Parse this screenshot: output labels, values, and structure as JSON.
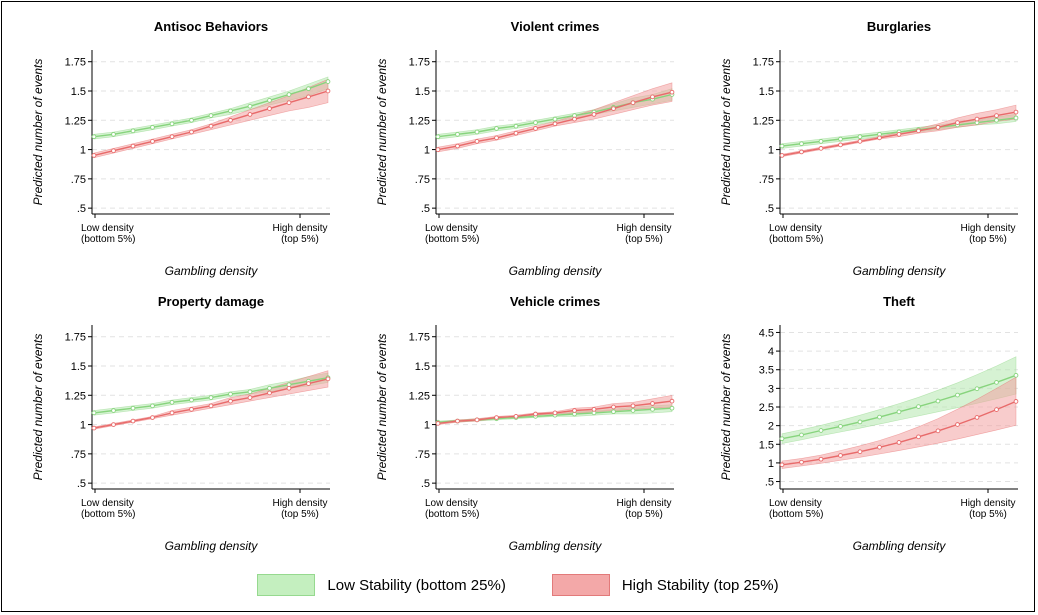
{
  "chart_data": [
    {
      "type": "line",
      "title": "Antisoc Behaviors",
      "xlabel": "Gambling density",
      "ylabel": "Predicted number of events",
      "x_tick_labels": [
        [
          "Low density",
          "(bottom 5%)"
        ],
        [
          "High density",
          "(top 5%)"
        ]
      ],
      "y_ticks": [
        ".5",
        ".75",
        "1",
        "1.25",
        "1.5",
        "1.75"
      ],
      "y_tick_values": [
        0.5,
        0.75,
        1,
        1.25,
        1.5,
        1.75
      ],
      "ylim": [
        0.45,
        1.85
      ],
      "grid": true,
      "series": [
        {
          "name": "Low Stability (bottom 25%)",
          "values": [
            1.11,
            1.13,
            1.16,
            1.19,
            1.22,
            1.25,
            1.29,
            1.33,
            1.37,
            1.42,
            1.47,
            1.52,
            1.58
          ],
          "lower": [
            1.09,
            1.11,
            1.14,
            1.17,
            1.2,
            1.23,
            1.27,
            1.3,
            1.34,
            1.38,
            1.42,
            1.46,
            1.52
          ],
          "upper": [
            1.13,
            1.15,
            1.18,
            1.21,
            1.24,
            1.27,
            1.31,
            1.35,
            1.4,
            1.45,
            1.5,
            1.56,
            1.62
          ]
        },
        {
          "name": "High Stability (top 25%)",
          "values": [
            0.95,
            0.99,
            1.03,
            1.07,
            1.11,
            1.15,
            1.2,
            1.25,
            1.3,
            1.35,
            1.4,
            1.45,
            1.5
          ],
          "lower": [
            0.93,
            0.97,
            1.01,
            1.05,
            1.09,
            1.13,
            1.17,
            1.21,
            1.25,
            1.29,
            1.33,
            1.36,
            1.4
          ],
          "upper": [
            0.97,
            1.01,
            1.05,
            1.09,
            1.13,
            1.17,
            1.22,
            1.28,
            1.34,
            1.4,
            1.46,
            1.53,
            1.6
          ]
        }
      ]
    },
    {
      "type": "line",
      "title": "Violent crimes",
      "xlabel": "Gambling density",
      "ylabel": "Predicted number of events",
      "x_tick_labels": [
        [
          "Low density",
          "(bottom 5%)"
        ],
        [
          "High density",
          "(top 5%)"
        ]
      ],
      "y_ticks": [
        ".5",
        ".75",
        "1",
        "1.25",
        "1.5",
        "1.75"
      ],
      "y_tick_values": [
        0.5,
        0.75,
        1,
        1.25,
        1.5,
        1.75
      ],
      "ylim": [
        0.45,
        1.85
      ],
      "grid": true,
      "series": [
        {
          "name": "Low Stability (bottom 25%)",
          "values": [
            1.11,
            1.13,
            1.15,
            1.18,
            1.2,
            1.23,
            1.26,
            1.29,
            1.32,
            1.36,
            1.4,
            1.43,
            1.47
          ],
          "lower": [
            1.09,
            1.11,
            1.13,
            1.16,
            1.18,
            1.21,
            1.24,
            1.27,
            1.3,
            1.33,
            1.36,
            1.39,
            1.42
          ],
          "upper": [
            1.13,
            1.15,
            1.17,
            1.2,
            1.22,
            1.25,
            1.28,
            1.31,
            1.34,
            1.39,
            1.44,
            1.47,
            1.52
          ]
        },
        {
          "name": "High Stability (top 25%)",
          "values": [
            1,
            1.03,
            1.07,
            1.1,
            1.14,
            1.18,
            1.22,
            1.26,
            1.3,
            1.35,
            1.4,
            1.45,
            1.49
          ],
          "lower": [
            0.98,
            1.01,
            1.05,
            1.08,
            1.12,
            1.16,
            1.2,
            1.23,
            1.26,
            1.3,
            1.34,
            1.38,
            1.41
          ],
          "upper": [
            1.02,
            1.05,
            1.09,
            1.12,
            1.16,
            1.2,
            1.24,
            1.29,
            1.34,
            1.4,
            1.46,
            1.52,
            1.57
          ]
        }
      ]
    },
    {
      "type": "line",
      "title": "Burglaries",
      "xlabel": "Gambling density",
      "ylabel": "Predicted number of events",
      "x_tick_labels": [
        [
          "Low density",
          "(bottom 5%)"
        ],
        [
          "High density",
          "(top 5%)"
        ]
      ],
      "y_ticks": [
        ".5",
        ".75",
        "1",
        "1.25",
        "1.5",
        "1.75"
      ],
      "y_tick_values": [
        0.5,
        0.75,
        1,
        1.25,
        1.5,
        1.75
      ],
      "ylim": [
        0.45,
        1.85
      ],
      "grid": true,
      "series": [
        {
          "name": "Low Stability (bottom 25%)",
          "values": [
            1.03,
            1.05,
            1.07,
            1.09,
            1.11,
            1.13,
            1.15,
            1.17,
            1.19,
            1.21,
            1.23,
            1.25,
            1.27
          ],
          "lower": [
            1.01,
            1.03,
            1.05,
            1.07,
            1.09,
            1.11,
            1.13,
            1.15,
            1.17,
            1.19,
            1.21,
            1.22,
            1.24
          ],
          "upper": [
            1.05,
            1.07,
            1.09,
            1.11,
            1.13,
            1.15,
            1.17,
            1.19,
            1.21,
            1.23,
            1.25,
            1.28,
            1.3
          ]
        },
        {
          "name": "High Stability (top 25%)",
          "values": [
            0.95,
            0.98,
            1.01,
            1.04,
            1.07,
            1.1,
            1.13,
            1.16,
            1.19,
            1.23,
            1.26,
            1.29,
            1.32
          ],
          "lower": [
            0.94,
            0.97,
            1,
            1.03,
            1.06,
            1.09,
            1.11,
            1.14,
            1.16,
            1.19,
            1.21,
            1.24,
            1.26
          ],
          "upper": [
            0.96,
            0.99,
            1.02,
            1.05,
            1.08,
            1.11,
            1.15,
            1.18,
            1.22,
            1.27,
            1.31,
            1.34,
            1.38
          ]
        }
      ]
    },
    {
      "type": "line",
      "title": "Property damage",
      "xlabel": "Gambling density",
      "ylabel": "Predicted number of events",
      "x_tick_labels": [
        [
          "Low density",
          "(bottom 5%)"
        ],
        [
          "High density",
          "(top 5%)"
        ]
      ],
      "y_ticks": [
        ".5",
        ".75",
        "1",
        "1.25",
        "1.5",
        "1.75"
      ],
      "y_tick_values": [
        0.5,
        0.75,
        1,
        1.25,
        1.5,
        1.75
      ],
      "ylim": [
        0.45,
        1.85
      ],
      "grid": true,
      "series": [
        {
          "name": "Low Stability (bottom 25%)",
          "values": [
            1.1,
            1.12,
            1.14,
            1.16,
            1.19,
            1.21,
            1.23,
            1.26,
            1.28,
            1.31,
            1.34,
            1.37,
            1.4
          ],
          "lower": [
            1.08,
            1.1,
            1.12,
            1.14,
            1.17,
            1.19,
            1.21,
            1.24,
            1.26,
            1.28,
            1.31,
            1.33,
            1.36
          ],
          "upper": [
            1.12,
            1.14,
            1.16,
            1.18,
            1.21,
            1.23,
            1.25,
            1.28,
            1.3,
            1.34,
            1.37,
            1.41,
            1.44
          ]
        },
        {
          "name": "High Stability (top 25%)",
          "values": [
            0.97,
            1,
            1.03,
            1.06,
            1.1,
            1.13,
            1.16,
            1.2,
            1.23,
            1.27,
            1.31,
            1.35,
            1.39
          ],
          "lower": [
            0.96,
            0.99,
            1.02,
            1.05,
            1.08,
            1.11,
            1.14,
            1.17,
            1.2,
            1.23,
            1.26,
            1.29,
            1.32
          ],
          "upper": [
            0.98,
            1.01,
            1.04,
            1.07,
            1.12,
            1.15,
            1.18,
            1.23,
            1.26,
            1.31,
            1.36,
            1.41,
            1.46
          ]
        }
      ]
    },
    {
      "type": "line",
      "title": "Vehicle crimes",
      "xlabel": "Gambling density",
      "ylabel": "Predicted number of events",
      "x_tick_labels": [
        [
          "Low density",
          "(bottom 5%)"
        ],
        [
          "High density",
          "(top 5%)"
        ]
      ],
      "y_ticks": [
        ".5",
        ".75",
        "1",
        "1.25",
        "1.5",
        "1.75"
      ],
      "y_tick_values": [
        0.5,
        0.75,
        1,
        1.25,
        1.5,
        1.75
      ],
      "ylim": [
        0.45,
        1.85
      ],
      "grid": true,
      "series": [
        {
          "name": "Low Stability (bottom 25%)",
          "values": [
            1.02,
            1.03,
            1.04,
            1.05,
            1.06,
            1.07,
            1.08,
            1.09,
            1.1,
            1.11,
            1.12,
            1.13,
            1.14
          ],
          "lower": [
            1.01,
            1.02,
            1.03,
            1.04,
            1.05,
            1.06,
            1.07,
            1.07,
            1.08,
            1.09,
            1.09,
            1.1,
            1.11
          ],
          "upper": [
            1.03,
            1.04,
            1.05,
            1.06,
            1.07,
            1.08,
            1.09,
            1.11,
            1.12,
            1.13,
            1.15,
            1.16,
            1.17
          ]
        },
        {
          "name": "High Stability (top 25%)",
          "values": [
            1.01,
            1.03,
            1.04,
            1.06,
            1.07,
            1.09,
            1.1,
            1.12,
            1.13,
            1.15,
            1.16,
            1.18,
            1.2
          ],
          "lower": [
            1,
            1.02,
            1.03,
            1.05,
            1.06,
            1.08,
            1.09,
            1.1,
            1.11,
            1.12,
            1.13,
            1.14,
            1.15
          ],
          "upper": [
            1.02,
            1.04,
            1.05,
            1.07,
            1.08,
            1.1,
            1.11,
            1.14,
            1.15,
            1.18,
            1.19,
            1.22,
            1.25
          ]
        }
      ]
    },
    {
      "type": "line",
      "title": "Theft",
      "xlabel": "Gambling density",
      "ylabel": "Predicted number of events",
      "x_tick_labels": [
        [
          "Low density",
          "(bottom 5%)"
        ],
        [
          "High density",
          "(top 5%)"
        ]
      ],
      "y_ticks": [
        ".5",
        "1",
        "1.5",
        "2",
        "2.5",
        "3",
        "3.5",
        "4",
        "4.5"
      ],
      "y_tick_values": [
        0.5,
        1,
        1.5,
        2,
        2.5,
        3,
        3.5,
        4,
        4.5
      ],
      "ylim": [
        0.3,
        4.7
      ],
      "grid": true,
      "series": [
        {
          "name": "Low Stability (bottom 25%)",
          "values": [
            1.65,
            1.75,
            1.87,
            1.98,
            2.1,
            2.23,
            2.37,
            2.51,
            2.66,
            2.82,
            2.99,
            3.16,
            3.35
          ],
          "lower": [
            1.52,
            1.62,
            1.73,
            1.83,
            1.93,
            2.04,
            2.15,
            2.26,
            2.37,
            2.48,
            2.6,
            2.72,
            2.85
          ],
          "upper": [
            1.78,
            1.89,
            2.01,
            2.14,
            2.28,
            2.43,
            2.59,
            2.76,
            2.95,
            3.15,
            3.37,
            3.6,
            3.85
          ]
        },
        {
          "name": "High Stability (top 25%)",
          "values": [
            0.95,
            1.02,
            1.1,
            1.2,
            1.3,
            1.42,
            1.55,
            1.7,
            1.86,
            2.03,
            2.22,
            2.43,
            2.65
          ],
          "lower": [
            0.85,
            0.92,
            0.99,
            1.07,
            1.15,
            1.24,
            1.33,
            1.43,
            1.53,
            1.64,
            1.76,
            1.88,
            2.01
          ],
          "upper": [
            1.05,
            1.12,
            1.21,
            1.33,
            1.46,
            1.6,
            1.77,
            1.97,
            2.19,
            2.44,
            2.71,
            3,
            3.3
          ]
        }
      ]
    }
  ],
  "legend": {
    "items": [
      {
        "label": "Low Stability (bottom 25%)",
        "fill": "#c4efbf",
        "stroke": "#96d98f"
      },
      {
        "label": "High Stability (top 25%)",
        "fill": "#f3a8a8",
        "stroke": "#e27a7a"
      }
    ]
  },
  "colors": {
    "low_line": "#87d47d",
    "low_band": "#b5e8ae",
    "high_line": "#e86a6a",
    "high_band": "#f2a3a3"
  }
}
